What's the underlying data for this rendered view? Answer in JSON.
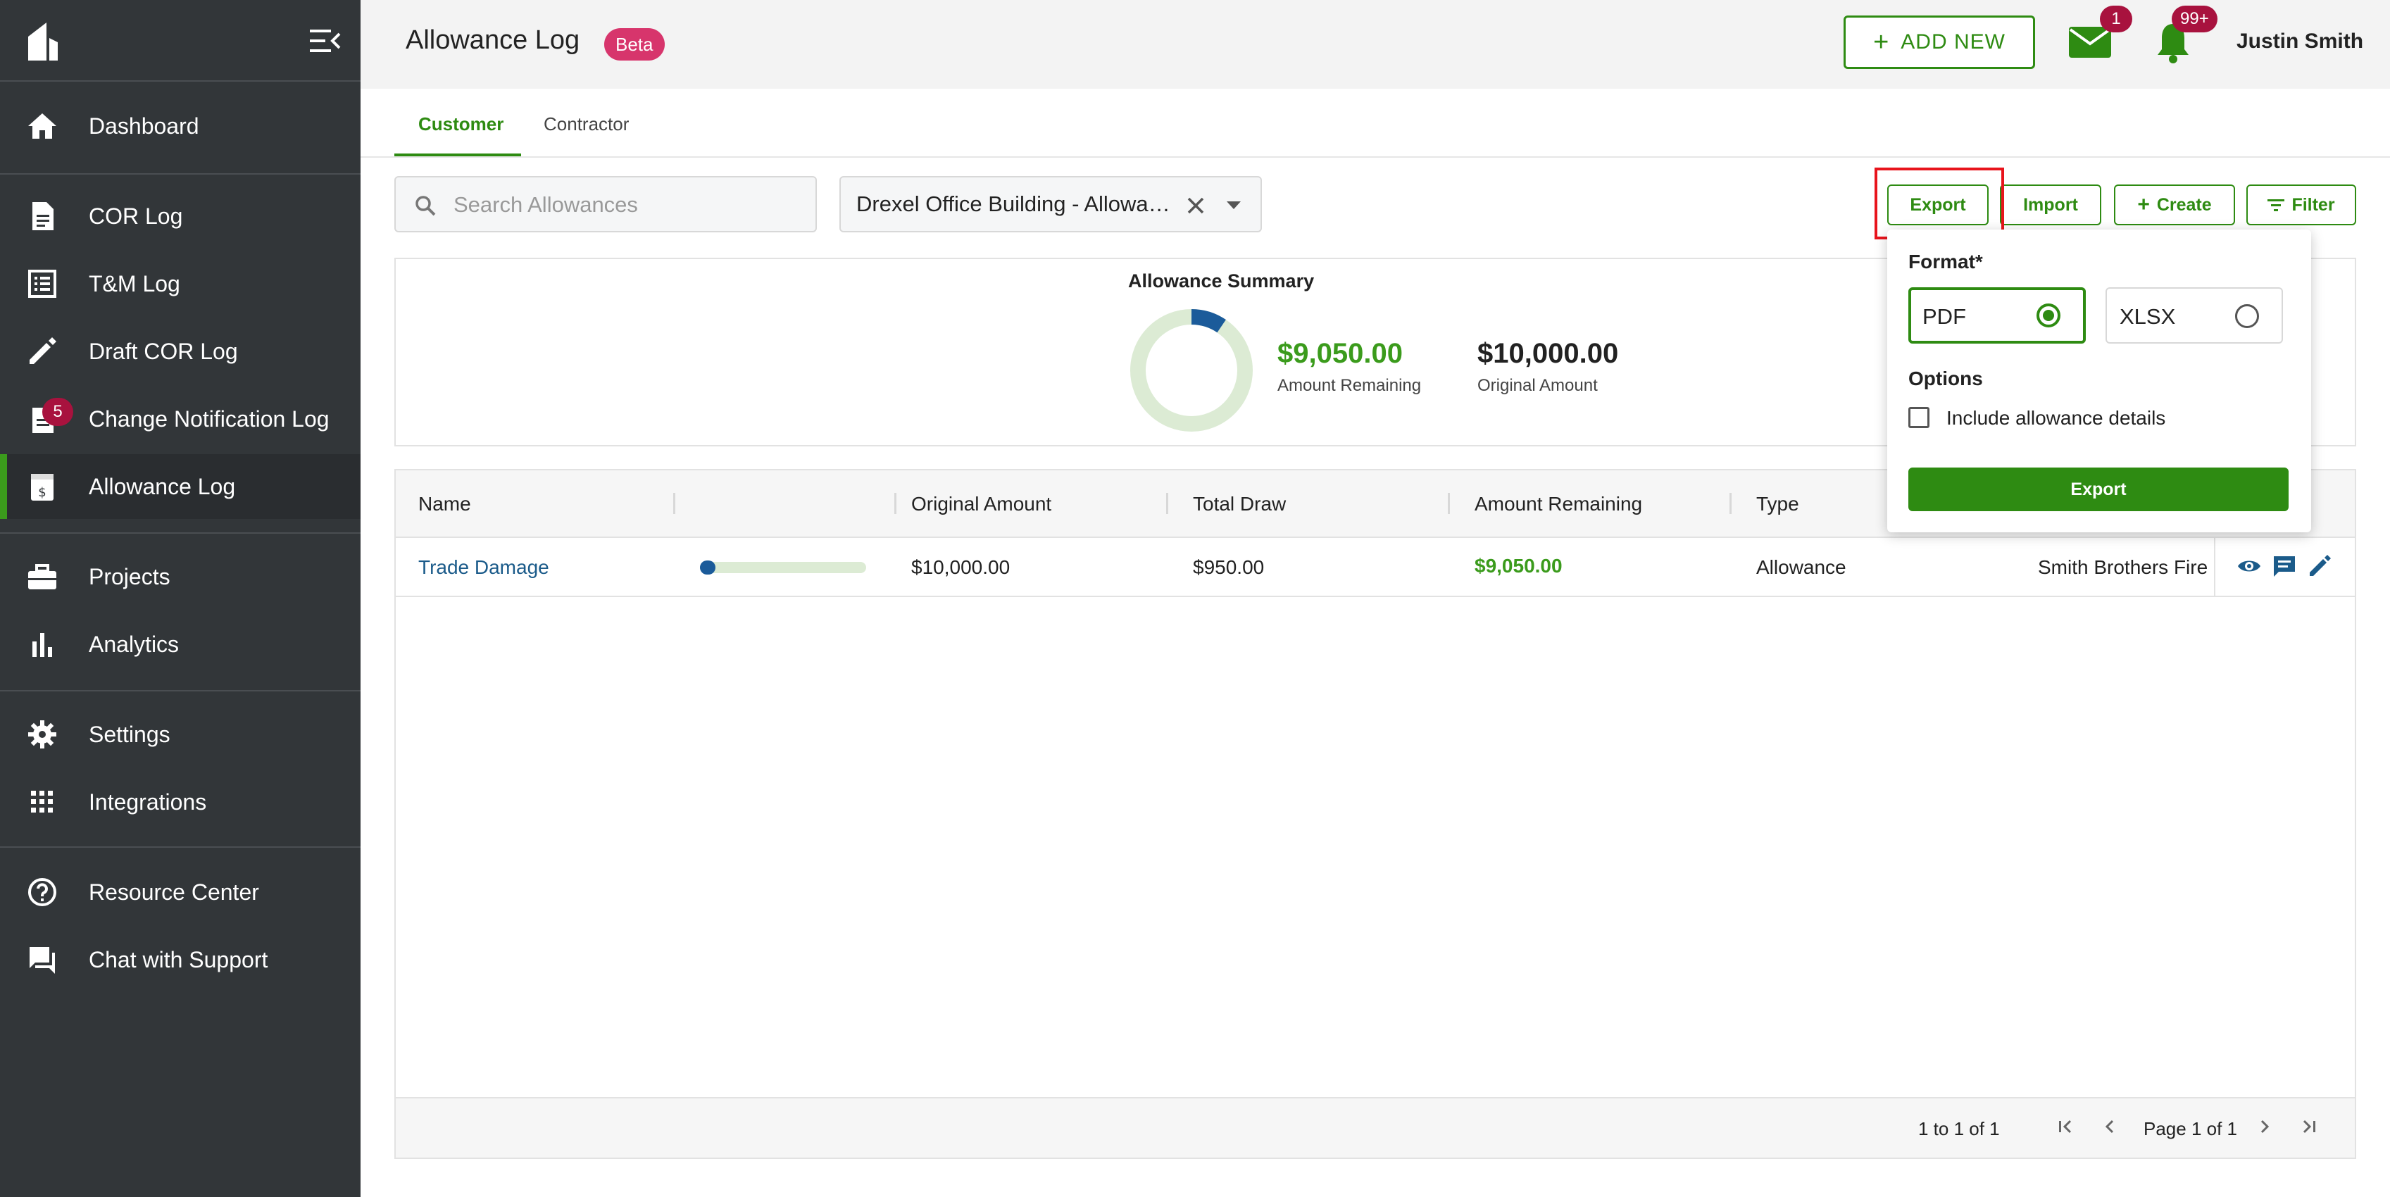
{
  "sidebar": {
    "items": [
      {
        "label": "Dashboard",
        "icon": "home-icon"
      },
      {
        "label": "COR Log",
        "icon": "document-icon"
      },
      {
        "label": "T&M Log",
        "icon": "list-icon"
      },
      {
        "label": "Draft COR Log",
        "icon": "pencil-icon"
      },
      {
        "label": "Change Notification Log",
        "icon": "notification-doc-icon",
        "badge": "5"
      },
      {
        "label": "Allowance Log",
        "icon": "allowance-icon",
        "active": true
      },
      {
        "label": "Projects",
        "icon": "briefcase-icon"
      },
      {
        "label": "Analytics",
        "icon": "bar-chart-icon"
      },
      {
        "label": "Settings",
        "icon": "gear-icon"
      },
      {
        "label": "Integrations",
        "icon": "grid-icon"
      },
      {
        "label": "Resource Center",
        "icon": "help-circle-icon"
      },
      {
        "label": "Chat with Support",
        "icon": "chat-icon"
      }
    ]
  },
  "header": {
    "title": "Allowance Log",
    "beta": "Beta",
    "add_new": "ADD NEW",
    "mail_badge": "1",
    "bell_badge": "99+",
    "user_name": "Justin Smith"
  },
  "tabs": [
    "Customer",
    "Contractor"
  ],
  "search": {
    "placeholder": "Search Allowances"
  },
  "project_select": {
    "value": "Drexel Office Building - Allowances"
  },
  "toolbar": {
    "export": "Export",
    "import": "Import",
    "create": "Create",
    "filter": "Filter"
  },
  "summary": {
    "title": "Allowance Summary",
    "remaining": "$9,050.00",
    "remaining_label": "Amount Remaining",
    "original": "$10,000.00",
    "original_label": "Original Amount",
    "used_fraction": 0.095
  },
  "table": {
    "columns": [
      "Name",
      "",
      "Original Amount",
      "Total Draw",
      "Amount Remaining",
      "Type"
    ],
    "rows": [
      {
        "name": "Trade Damage",
        "progress": 0.095,
        "original": "$10,000.00",
        "draw": "$950.00",
        "remaining": "$9,050.00",
        "type": "Allowance",
        "party": "Smith Brothers Fire Protection"
      }
    ],
    "footer": {
      "range": "1 to 1 of 1",
      "page": "Page 1 of 1"
    }
  },
  "export_popover": {
    "format_label": "Format*",
    "formats": [
      "PDF",
      "XLSX"
    ],
    "selected": "PDF",
    "options_label": "Options",
    "include_details": "Include allowance details",
    "export_button": "Export"
  },
  "colors": {
    "brand_green": "#2e8b12",
    "sidebar_bg": "#323639",
    "badge_red": "#a8123e",
    "beta_pink": "#d7356c",
    "link_blue": "#1b5b8a"
  }
}
